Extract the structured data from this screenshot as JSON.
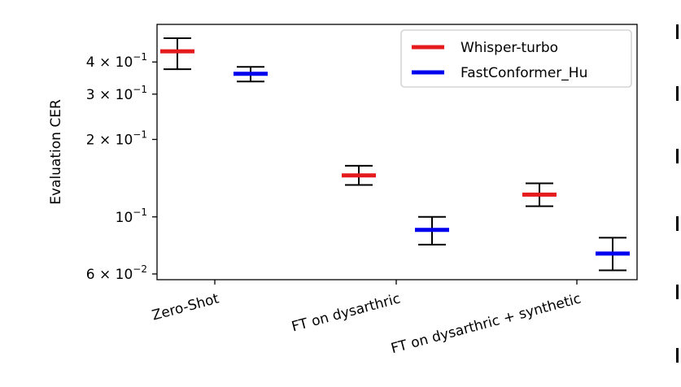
{
  "chart_data": {
    "type": "scatter",
    "ylabel": "Evaluation CER",
    "yscale": "log",
    "ylim": [
      0.057,
      0.56
    ],
    "categories": [
      "Zero-Shot",
      "FT on dysarthric",
      "FT on dysarthric + synthetic"
    ],
    "series": [
      {
        "name": "Whisper-turbo",
        "color": "#e41a1c",
        "values": [
          0.44,
          0.145,
          0.122
        ],
        "err_low": [
          0.375,
          0.133,
          0.11
        ],
        "err_high": [
          0.495,
          0.158,
          0.135
        ]
      },
      {
        "name": "FastConformer_Hu",
        "color": "#0000ee",
        "values": [
          0.36,
          0.089,
          0.072
        ],
        "err_low": [
          0.336,
          0.078,
          0.062
        ],
        "err_high": [
          0.383,
          0.1,
          0.083
        ]
      }
    ],
    "y_ticks": [
      {
        "value": 0.4,
        "base": "4 × 10",
        "exp": "−1"
      },
      {
        "value": 0.3,
        "base": "3 × 10",
        "exp": "−1"
      },
      {
        "value": 0.2,
        "base": "2 × 10",
        "exp": "−1"
      },
      {
        "value": 0.1,
        "base": "10",
        "exp": "−1"
      },
      {
        "value": 0.06,
        "base": "6 × 10",
        "exp": "−2"
      }
    ],
    "legend_position": "top-right",
    "grid": false
  }
}
